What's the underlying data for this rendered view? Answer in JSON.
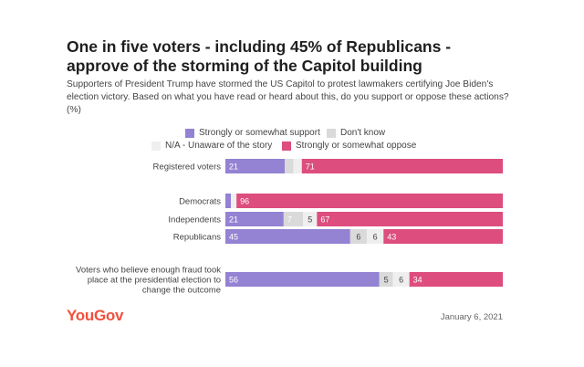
{
  "title_line1": "One in five voters - including 45% of Republicans -",
  "title_line2": "approve of the storming of the Capitol building",
  "subtitle": "Supporters of President Trump have stormed the US Capitol to protest lawmakers certifying Joe Biden's election victory. Based on what you have read or heard about this, do you support or oppose these actions? (%)",
  "legend": {
    "support": "Strongly or somewhat support",
    "dont_know": "Don't know",
    "na": "N/A - Unaware of the story",
    "oppose": "Strongly or somewhat oppose"
  },
  "colors": {
    "support": "#9482d3",
    "dont_know": "#dadada",
    "na": "#efefef",
    "oppose": "#dd4d7d"
  },
  "logo": "YouGov",
  "date": "January 6, 2021",
  "chart_data": {
    "type": "bar",
    "orientation": "horizontal-stacked-100",
    "categories": [
      "Registered voters",
      "Democrats",
      "Independents",
      "Republicans",
      "Voters who believe enough fraud took place at the presidential election to change the outcome"
    ],
    "series": [
      {
        "name": "Strongly or somewhat support",
        "values": [
          21,
          2,
          21,
          45,
          56
        ]
      },
      {
        "name": "Don't know",
        "values": [
          3,
          0,
          7,
          6,
          5
        ]
      },
      {
        "name": "N/A - Unaware of the story",
        "values": [
          3,
          2,
          5,
          6,
          6
        ]
      },
      {
        "name": "Strongly or somewhat oppose",
        "values": [
          71,
          96,
          67,
          43,
          34
        ]
      }
    ],
    "labels": [
      [
        "21",
        "",
        "",
        "71"
      ],
      [
        "",
        "",
        "",
        "96"
      ],
      [
        "21",
        "7",
        "5",
        "67"
      ],
      [
        "45",
        "6",
        "6",
        "43"
      ],
      [
        "56",
        "5",
        "6",
        "34"
      ]
    ],
    "label_styles": [
      [
        "inside",
        "",
        "",
        "inside"
      ],
      [
        "",
        "",
        "",
        "inside"
      ],
      [
        "inside",
        "inside",
        "outside",
        "inside"
      ],
      [
        "inside",
        "outside",
        "outside",
        "inside"
      ],
      [
        "inside",
        "outside",
        "outside",
        "inside"
      ]
    ],
    "category_lines": [
      [
        "Registered voters"
      ],
      [
        "Democrats"
      ],
      [
        "Independents"
      ],
      [
        "Republicans"
      ],
      [
        "Voters who believe enough fraud took",
        "place at the presidential election to",
        "change the outcome"
      ]
    ],
    "legend_position": "top"
  }
}
